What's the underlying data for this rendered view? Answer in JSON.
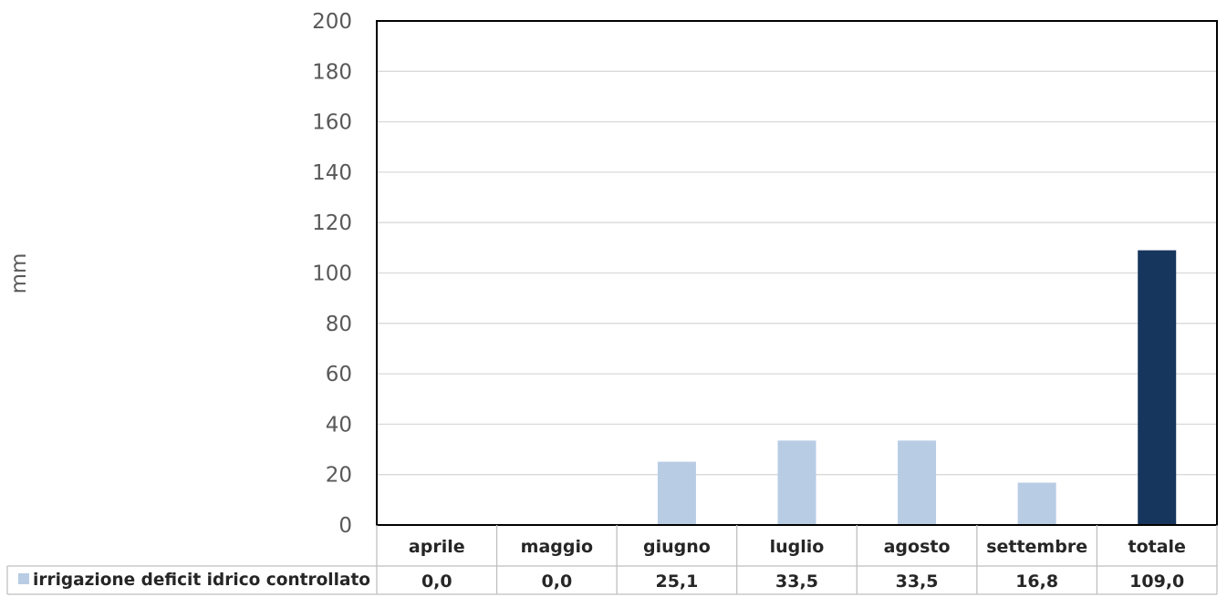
{
  "chart_data": {
    "type": "bar",
    "title": "",
    "xlabel": "",
    "ylabel": "mm",
    "ylim": [
      0,
      200
    ],
    "yticks": [
      0,
      20,
      40,
      60,
      80,
      100,
      120,
      140,
      160,
      180,
      200
    ],
    "grid": true,
    "legend": "data-table-left",
    "categories": [
      "aprile",
      "maggio",
      "giugno",
      "luglio",
      "agosto",
      "settembre",
      "totale"
    ],
    "series": [
      {
        "name": "irrigazione deficit idrico controllato",
        "values": [
          0.0,
          0.0,
          25.1,
          33.5,
          33.5,
          16.8,
          109.0
        ],
        "value_labels": [
          "0,0",
          "0,0",
          "25,1",
          "33,5",
          "33,5",
          "16,8",
          "109,0"
        ],
        "colors": [
          "#b8cce4",
          "#b8cce4",
          "#b8cce4",
          "#b8cce4",
          "#b8cce4",
          "#b8cce4",
          "#17365d"
        ]
      }
    ]
  }
}
